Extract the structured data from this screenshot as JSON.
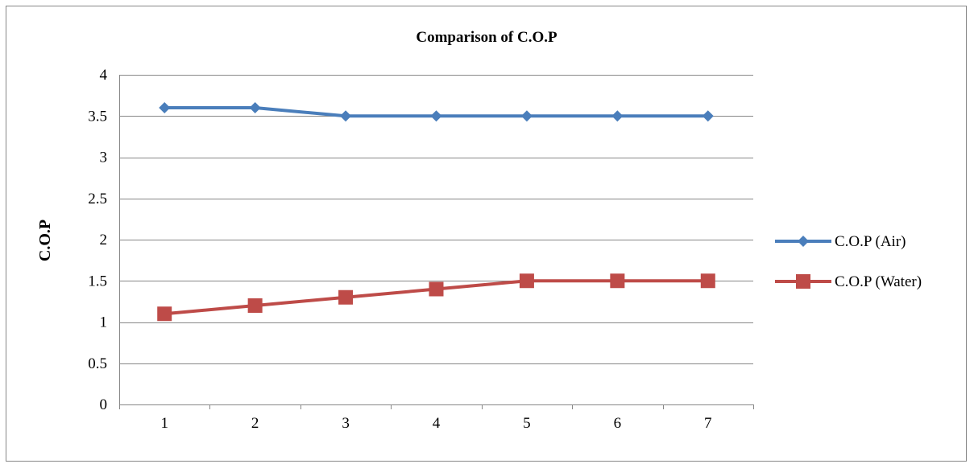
{
  "chart_data": {
    "type": "line",
    "title": "Comparison of C.O.P",
    "xlabel": "",
    "ylabel": "C.O.P",
    "categories": [
      "1",
      "2",
      "3",
      "4",
      "5",
      "6",
      "7"
    ],
    "ylim": [
      0,
      4
    ],
    "yticks": [
      "0",
      "0.5",
      "1",
      "1.5",
      "2",
      "2.5",
      "3",
      "3.5",
      "4"
    ],
    "grid": true,
    "legend_position": "right",
    "series": [
      {
        "name": "C.O.P (Air)",
        "values": [
          3.6,
          3.6,
          3.5,
          3.5,
          3.5,
          3.5,
          3.5
        ],
        "color": "#4a7ebb",
        "marker": "diamond"
      },
      {
        "name": "C.O.P (Water)",
        "values": [
          1.1,
          1.2,
          1.3,
          1.4,
          1.5,
          1.5,
          1.5
        ],
        "color": "#be4b48",
        "marker": "square"
      }
    ]
  }
}
